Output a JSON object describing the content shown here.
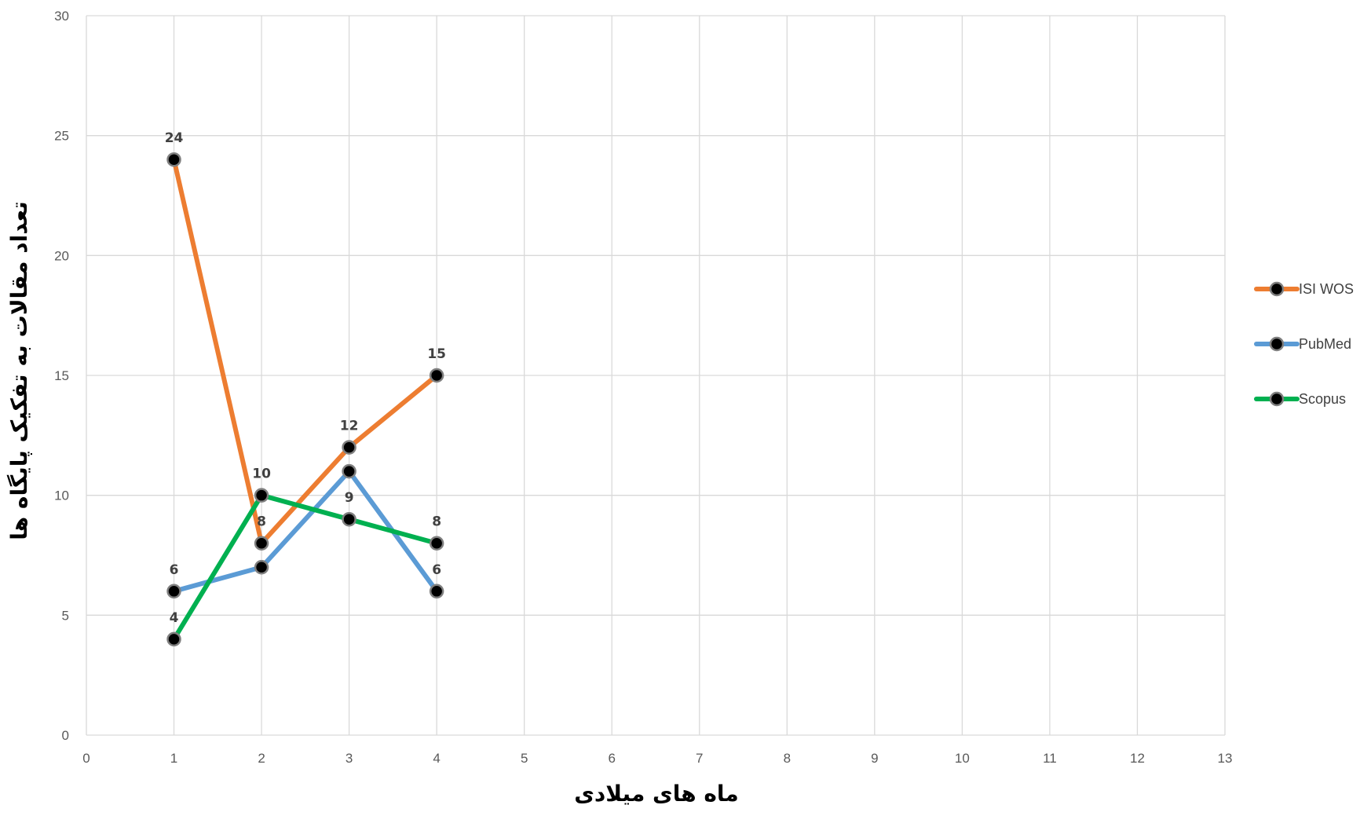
{
  "chart_data": {
    "type": "line",
    "title": "",
    "xlabel": "ماه های میلادی",
    "ylabel": "تعداد مقالات به تفکیک پایگاه ها",
    "xlim": [
      0,
      13
    ],
    "ylim": [
      0,
      30
    ],
    "x_ticks": [
      0,
      1,
      2,
      3,
      4,
      5,
      6,
      7,
      8,
      9,
      10,
      11,
      12,
      13
    ],
    "y_ticks": [
      0,
      5,
      10,
      15,
      20,
      25,
      30
    ],
    "grid": true,
    "legend_position": "right",
    "series": [
      {
        "name": "ISI WOS",
        "color": "#ED7D31",
        "x": [
          1,
          2,
          3,
          4
        ],
        "values": [
          24,
          8,
          12,
          15
        ]
      },
      {
        "name": "PubMed",
        "color": "#5B9BD5",
        "x": [
          1,
          2,
          3,
          4
        ],
        "values": [
          6,
          7,
          11,
          6
        ]
      },
      {
        "name": "Scopus",
        "color": "#00B050",
        "x": [
          1,
          2,
          3,
          4
        ],
        "values": [
          4,
          10,
          9,
          8
        ]
      }
    ],
    "data_labels": [
      {
        "x": 1,
        "y": 24,
        "text": "24"
      },
      {
        "x": 1,
        "y": 6,
        "text": "6"
      },
      {
        "x": 1,
        "y": 4,
        "text": "4"
      },
      {
        "x": 2,
        "y": 10,
        "text": "10"
      },
      {
        "x": 2,
        "y": 8,
        "text": "8"
      },
      {
        "x": 3,
        "y": 12,
        "text": "12"
      },
      {
        "x": 3,
        "y": 9,
        "text": "9"
      },
      {
        "x": 4,
        "y": 15,
        "text": "15"
      },
      {
        "x": 4,
        "y": 8,
        "text": "8"
      },
      {
        "x": 4,
        "y": 6,
        "text": "6"
      }
    ],
    "marker_color": "#000000",
    "grid_color": "#D9D9D9"
  }
}
